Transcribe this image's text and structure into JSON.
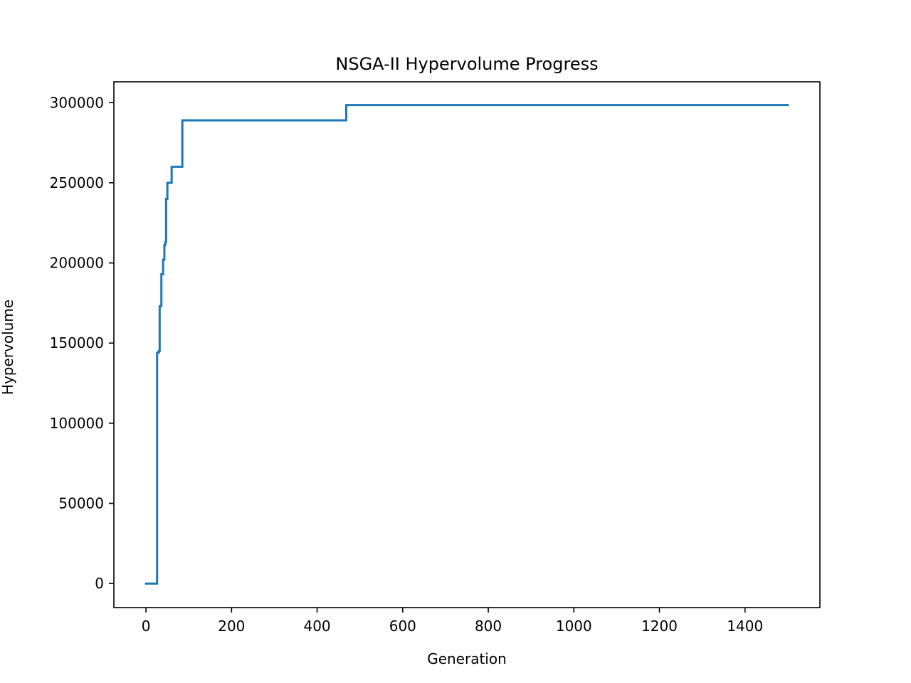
{
  "chart_data": {
    "type": "line",
    "title": "NSGA-II Hypervolume Progress",
    "xlabel": "Generation",
    "ylabel": "Hypervolume",
    "xlim": [
      -75,
      1575
    ],
    "ylim": [
      -15000,
      313000
    ],
    "grid": false,
    "legend": "none",
    "x_ticks": [
      0,
      200,
      400,
      600,
      800,
      1000,
      1200,
      1400
    ],
    "x_tick_labels": [
      "0",
      "200",
      "400",
      "600",
      "800",
      "1000",
      "1200",
      "1400"
    ],
    "y_ticks": [
      0,
      50000,
      100000,
      150000,
      200000,
      250000,
      300000
    ],
    "y_tick_labels": [
      "0",
      "50000",
      "100000",
      "150000",
      "200000",
      "250000",
      "300000"
    ],
    "series": [
      {
        "color": "#1f77b4",
        "step": true,
        "x": [
          0,
          25,
          26,
          30,
          32,
          36,
          40,
          43,
          45,
          47,
          50,
          56,
          60,
          84,
          85,
          467,
          468,
          1500
        ],
        "y": [
          0,
          0,
          144000,
          145000,
          173000,
          193000,
          202000,
          211000,
          213000,
          240000,
          250000,
          250000,
          260000,
          260000,
          289000,
          289000,
          298500,
          298500
        ]
      }
    ]
  }
}
